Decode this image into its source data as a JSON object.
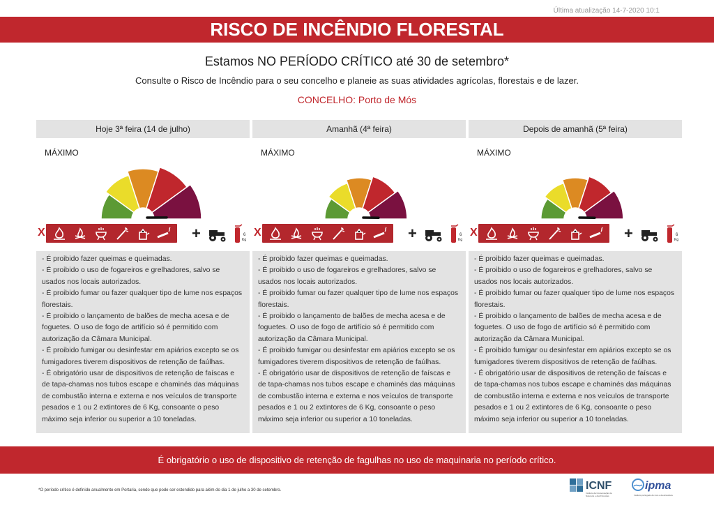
{
  "header": {
    "updated": "Última atualização 14-7-2020 10:1",
    "title": "RISCO DE INCÊNDIO FLORESTAL",
    "critical_period": "Estamos NO PERÍODO CRÍTICO até 30 de setembro*",
    "consult": "Consulte o Risco de Incêndio para o seu concelho e planeie as suas atividades agrícolas, florestais e de lazer.",
    "concelho": "CONCELHO: Porto de Mós"
  },
  "columns": [
    {
      "day": "Hoje 3ª feira (14 de julho)",
      "level": "MÁXIMO",
      "gauge_level_index": 4,
      "rules": [
        "- É proibido fazer queimas e queimadas.",
        "- É proibido o uso de fogareiros e grelhadores, salvo se usados nos locais autorizados.",
        "- É proibido fumar ou fazer qualquer tipo de lume nos espaços florestais.",
        "- É proibido o lançamento de balões de mecha acesa e de foguetes. O uso de fogo de artifício só é permitido com autorização da Câmara Municipal.",
        "- É proibido fumigar ou desinfestar em apiários excepto se os fumigadores tiverem dispositivos de retenção de faúlhas.",
        "- É obrigatório usar de dispositivos de retenção de faíscas e de tapa-chamas nos tubos escape e chaminés das máquinas de combustão interna e externa e nos veículos de transporte pesados e 1 ou 2 extintores de 6 Kg,  consoante  o  peso máximo seja inferior ou superior a 10 toneladas."
      ]
    },
    {
      "day": "Amanhã (4ª feira)",
      "level": "MÁXIMO",
      "gauge_level_index": 4,
      "rules": [
        "- É proibido fazer queimas e queimadas.",
        "- É proibido o uso de fogareiros e grelhadores, salvo se usados nos locais autorizados.",
        "- É proibido fumar ou fazer qualquer tipo de lume nos espaços florestais.",
        "- É proibido o lançamento de balões de mecha acesa e de foguetes. O uso de fogo de artifício só é permitido com autorização da Câmara Municipal.",
        "- É proibido fumigar ou desinfestar em apiários excepto se os fumigadores tiverem dispositivos de retenção de faúlhas.",
        "- É obrigatório usar de dispositivos de retenção de faíscas e de tapa-chamas nos tubos escape e chaminés das máquinas de combustão interna e externa e nos veículos de transporte pesados e 1 ou 2 extintores de 6 Kg,  consoante  o  peso máximo seja inferior ou superior a 10 toneladas."
      ]
    },
    {
      "day": "Depois de amanhã (5ª feira)",
      "level": "MÁXIMO",
      "gauge_level_index": 4,
      "rules": [
        "- É proibido fazer queimas e queimadas.",
        "- É proibido o uso de fogareiros e grelhadores, salvo se usados nos locais autorizados.",
        "- É proibido fumar ou fazer qualquer tipo de lume nos espaços florestais.",
        "- É proibido o lançamento de balões de mecha acesa e de foguetes. O uso de fogo de artifício só é permitido com autorização da Câmara Municipal.",
        "- É proibido fumigar ou desinfestar em apiários excepto se os fumigadores tiverem dispositivos de retenção de faúlhas.",
        "- É obrigatório usar de dispositivos de retenção de faíscas e de tapa-chamas nos tubos escape e chaminés das máquinas de combustão interna e externa e nos veículos de transporte pesados e 1 ou 2 extintores de 6 Kg,  consoante  o  peso máximo seja inferior ou superior a 10 toneladas."
      ]
    }
  ],
  "symbols": {
    "x_mark": "X",
    "plus_mark": "+",
    "extinguisher_label": "6 Kg"
  },
  "gauge_colors": [
    "#5c9a34",
    "#eadc2a",
    "#dc8a22",
    "#c0272d",
    "#7a1140"
  ],
  "bottom_notice": "É obrigatório o uso de dispositivo de retenção de fagulhas no uso de maquinaria no período crítico.",
  "footnote": "*O período crítico é definido anualmente em Portaria, sendo que pode ser estendido para além do dia 1 de julho a 30 de setembro.",
  "logos": {
    "icnf": "ICNF",
    "icnf_sub": "Instituto da Conservação da Natureza e das Florestas",
    "ipma": "ipma",
    "ipma_sub": "Instituto português do mar e da atmosfera"
  }
}
